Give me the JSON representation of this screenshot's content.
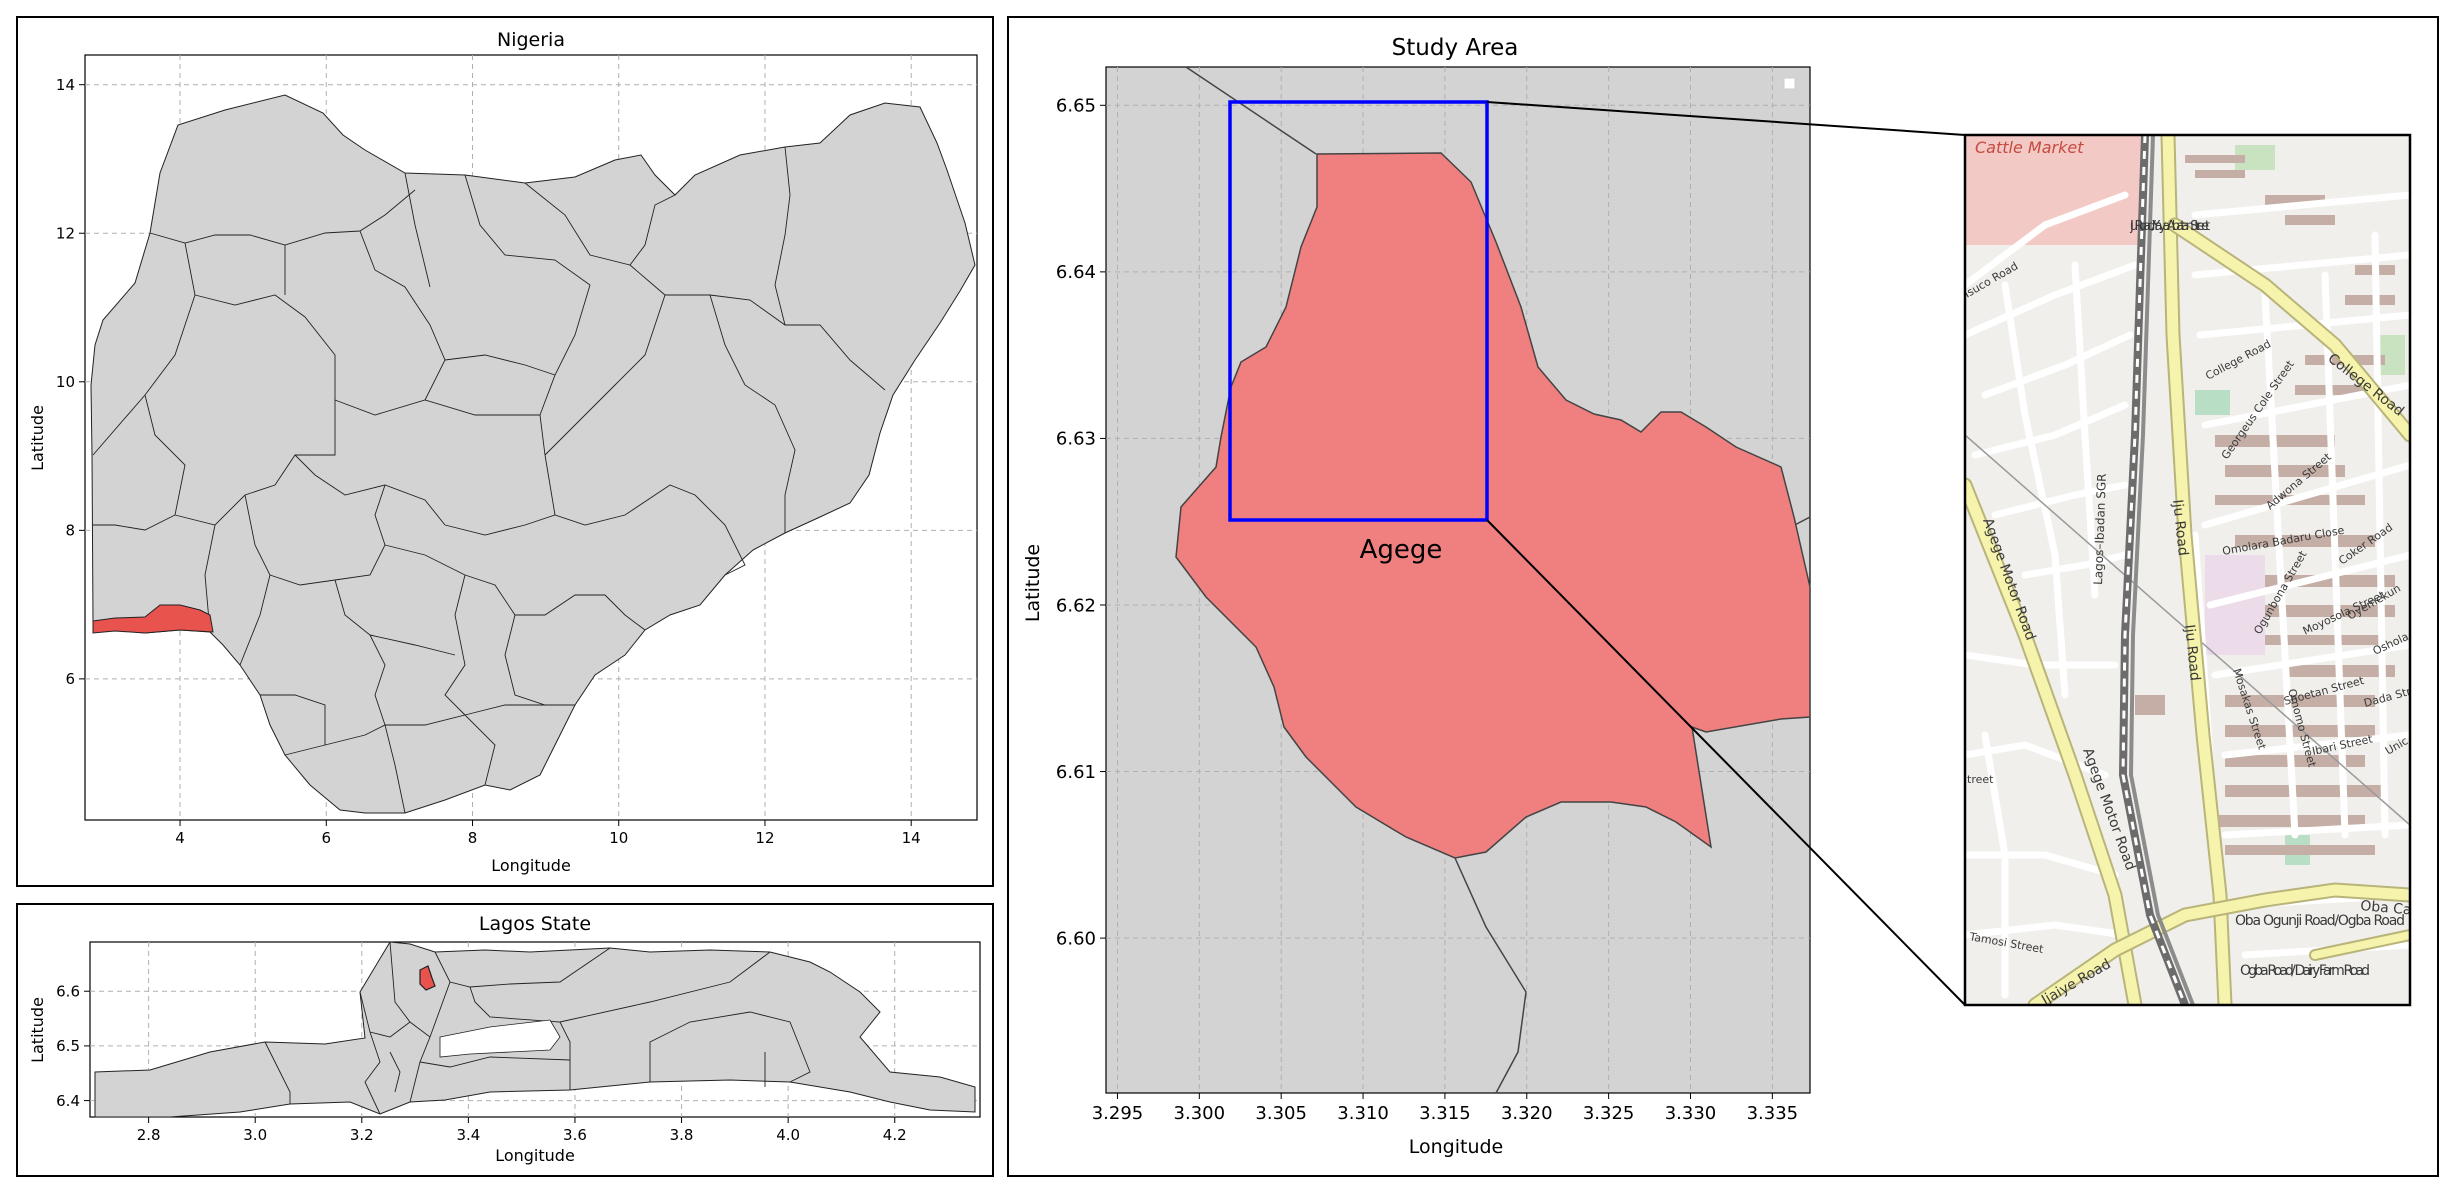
{
  "panels": {
    "nigeria": {
      "title": "Nigeria",
      "xlabel": "Longitude",
      "ylabel": "Latitude",
      "xticks": [
        "4",
        "6",
        "8",
        "10",
        "12",
        "14"
      ],
      "yticks": [
        "6",
        "8",
        "10",
        "12",
        "14"
      ],
      "xlim": [
        2.7,
        14.9
      ],
      "ylim": [
        4.1,
        14.4
      ],
      "highlight_region": "Lagos State",
      "fill_color": "#d3d3d3",
      "highlight_color": "#e8534e"
    },
    "lagos": {
      "title": "Lagos State",
      "xlabel": "Longitude",
      "ylabel": "Latitude",
      "xticks": [
        "2.8",
        "3.0",
        "3.2",
        "3.4",
        "3.6",
        "3.8",
        "4.0",
        "4.2"
      ],
      "yticks": [
        "6.4",
        "6.5",
        "6.6"
      ],
      "xlim": [
        2.69,
        4.36
      ],
      "ylim": [
        6.37,
        6.69
      ],
      "highlight_region": "Agege",
      "highlight_color": "#e8534e"
    },
    "study": {
      "title": "Study Area",
      "xlabel": "Longitude",
      "ylabel": "Latitude",
      "xticks": [
        "3.295",
        "3.300",
        "3.305",
        "3.310",
        "3.315",
        "3.320",
        "3.325",
        "3.330",
        "3.335"
      ],
      "yticks": [
        "6.60",
        "6.61",
        "6.62",
        "6.63",
        "6.64",
        "6.65"
      ],
      "xlim": [
        3.2943,
        3.3373
      ],
      "ylim": [
        6.5907,
        6.6523
      ],
      "area_label": "Agege",
      "area_color": "#f08080",
      "box_color": "#0000ff",
      "box_extent": {
        "lon": [
          3.302,
          3.3177
        ],
        "lat": [
          6.6252,
          6.6503
        ]
      }
    },
    "inset": {
      "place_label": "Cattle Market",
      "streets": [
        "Iju Road/ Yaya Abatan Street",
        "College Road",
        "College Road",
        "Georgeus Cole Street",
        "Adwona Street",
        "Omolara Badaru Close",
        "Coker Road",
        "Ogunbona Street",
        "Moyosola Street",
        "Oyemekun",
        "Oshola",
        "Shoetan Street",
        "Dada Stree",
        "Ibari Street",
        "Omomo Street",
        "Mosakas Street",
        "Iju Road",
        "Iju Road",
        "Agege Motor Road",
        "Agege Motor Road",
        "Lagos–Ibadan SGR",
        "Oba Ogunji Road/Ogba Road",
        "Ogba Road/ Dairy Farm Road",
        "Oba Ca",
        "Ijaiye Road",
        "Tamosi Street",
        "treet",
        "Unic",
        "Isuco Road"
      ]
    }
  }
}
